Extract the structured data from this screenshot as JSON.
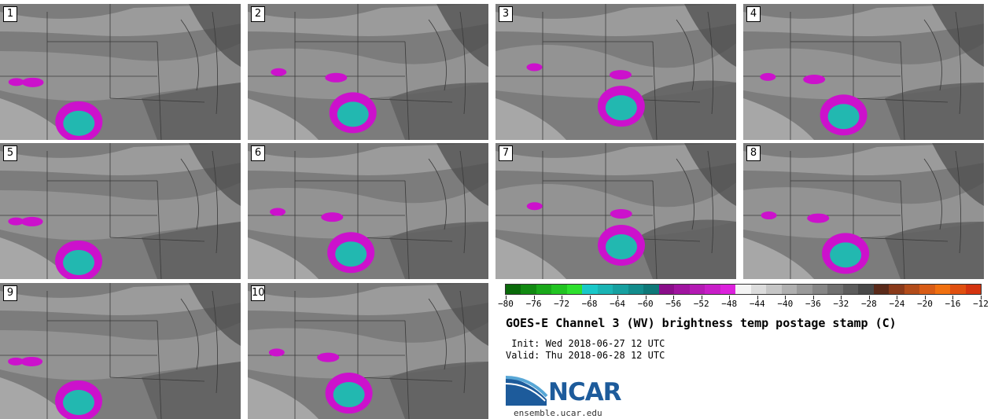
{
  "panels": [
    {
      "num": "1",
      "outline": true
    },
    {
      "num": "2",
      "outline": false
    },
    {
      "num": "3",
      "outline": false
    },
    {
      "num": "4",
      "outline": false
    },
    {
      "num": "5",
      "outline": false
    },
    {
      "num": "6",
      "outline": false
    },
    {
      "num": "7",
      "outline": false
    },
    {
      "num": "8",
      "outline": false
    },
    {
      "num": "9",
      "outline": false
    },
    {
      "num": "10",
      "outline": false
    }
  ],
  "colorbar": {
    "colors": [
      "#0a6a0a",
      "#128a12",
      "#1aa81a",
      "#22c422",
      "#2ee02e",
      "#19c8c8",
      "#1ab4b4",
      "#16a0a0",
      "#128c8c",
      "#0e7878",
      "#8a0e8a",
      "#a014a0",
      "#b41ab4",
      "#c81ec8",
      "#dc22dc",
      "#f4f4f4",
      "#dcdcdc",
      "#c6c6c6",
      "#b0b0b0",
      "#9a9a9a",
      "#868686",
      "#707070",
      "#5c5c5c",
      "#484848",
      "#5a2a1a",
      "#8a3a1a",
      "#b24c1a",
      "#d85c16",
      "#f07010",
      "#e05010",
      "#d43410"
    ],
    "tick_labels": [
      "−80",
      "−76",
      "−72",
      "−68",
      "−64",
      "−60",
      "−56",
      "−52",
      "−48",
      "−44",
      "−40",
      "−36",
      "−32",
      "−28",
      "−24",
      "−20",
      "−16",
      "−12"
    ]
  },
  "title": "GOES-E Channel 3 (WV) brightness temp postage stamp (C)",
  "init": " Init: Wed 2018-06-27 12 UTC",
  "valid": "Valid: Thu 2018-06-28 12 UTC",
  "logo_text": "NCAR",
  "url": "ensemble.ucar.edu"
}
